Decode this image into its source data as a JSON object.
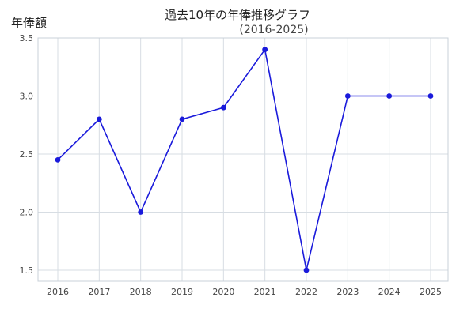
{
  "chart_data": {
    "type": "line",
    "title": "過去10年の年俸推移グラフ",
    "subtitle": "(2016-2025)",
    "ylabel": "年俸額",
    "xlabel": "",
    "categories": [
      "2016",
      "2017",
      "2018",
      "2019",
      "2020",
      "2021",
      "2022",
      "2023",
      "2024",
      "2025"
    ],
    "series": [
      {
        "values": [
          2.45,
          2.8,
          2.0,
          2.8,
          2.9,
          3.4,
          1.5,
          3.0,
          3.0,
          3.0
        ],
        "color": "#1a1adb"
      }
    ],
    "ylim": [
      1.5,
      3.5
    ],
    "yticks": [
      1.5,
      2.0,
      2.5,
      3.0,
      3.5
    ],
    "ytick_labels": [
      "1.5",
      "2.0",
      "2.5",
      "3.0",
      "3.5"
    ],
    "grid": true,
    "marker": "circle"
  }
}
